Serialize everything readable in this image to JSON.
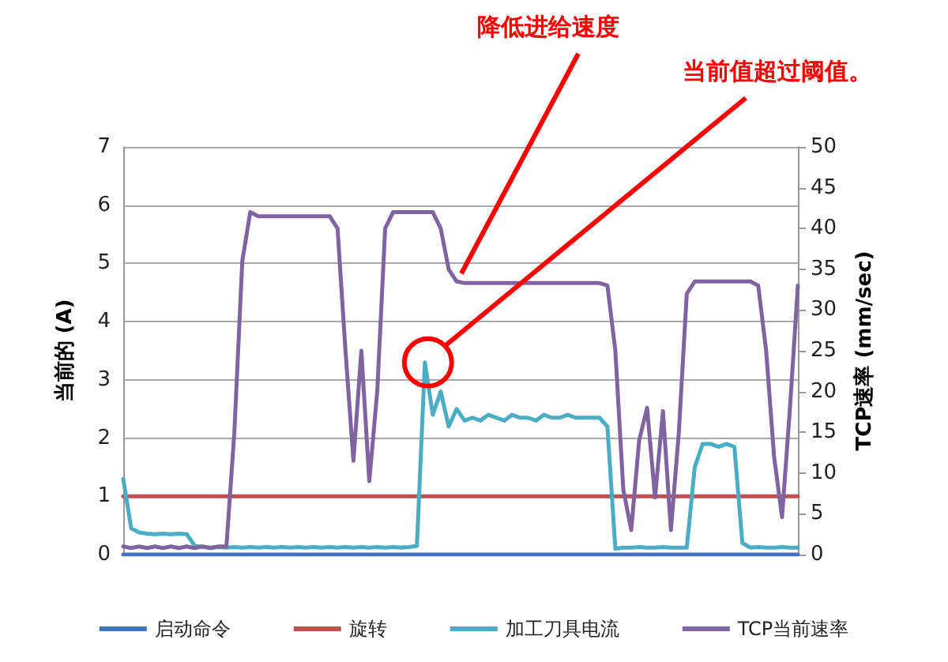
{
  "chart_data": {
    "type": "line",
    "ylabel": "当前的 (A)",
    "y2label": "TCP速率 (mm/sec)",
    "annotations": [
      "降低进给速度",
      "当前值超过阈值。"
    ],
    "categories": [
      null,
      null,
      null,
      null,
      null,
      null,
      null,
      null,
      null,
      null,
      null,
      null,
      null,
      null,
      null,
      null,
      null,
      null,
      null,
      null,
      null,
      null,
      null,
      null,
      null,
      null,
      null,
      null,
      null,
      null,
      null,
      null,
      null,
      null,
      null,
      null,
      null,
      null,
      null,
      null,
      null,
      null,
      null,
      null,
      null,
      null,
      null,
      null,
      null,
      null,
      null,
      null,
      null,
      null,
      null,
      null,
      null,
      null,
      null,
      null,
      null,
      null,
      null,
      null,
      null,
      null,
      null,
      null,
      null,
      null,
      null,
      null,
      null,
      null,
      null,
      null,
      null,
      null,
      null,
      null,
      null,
      null,
      null,
      null,
      null,
      null
    ],
    "series": [
      {
        "name": "启动命令",
        "color": "#4472c4",
        "values": [
          0,
          0,
          0,
          0,
          0,
          0,
          0,
          0,
          0,
          0,
          0,
          0,
          0,
          0,
          0,
          0,
          0,
          0,
          0,
          0,
          0,
          0,
          0,
          0,
          0,
          0,
          0,
          0,
          0,
          0,
          0,
          0,
          0,
          0,
          0,
          0,
          0,
          0,
          0,
          0,
          0,
          0,
          0,
          0,
          0,
          0,
          0,
          0,
          0,
          0,
          0,
          0,
          0,
          0,
          0,
          0,
          0,
          0,
          0,
          0,
          0,
          0,
          0,
          0,
          0,
          0,
          0,
          0,
          0,
          0,
          0,
          0,
          0,
          0,
          0,
          0,
          0,
          0,
          0,
          0,
          0,
          0,
          0,
          0,
          0,
          0
        ]
      },
      {
        "name": "旋转",
        "color": "#c0504d",
        "values": [
          1,
          1,
          1,
          1,
          1,
          1,
          1,
          1,
          1,
          1,
          1,
          1,
          1,
          1,
          1,
          1,
          1,
          1,
          1,
          1,
          1,
          1,
          1,
          1,
          1,
          1,
          1,
          1,
          1,
          1,
          1,
          1,
          1,
          1,
          1,
          1,
          1,
          1,
          1,
          1,
          1,
          1,
          1,
          1,
          1,
          1,
          1,
          1,
          1,
          1,
          1,
          1,
          1,
          1,
          1,
          1,
          1,
          1,
          1,
          1,
          1,
          1,
          1,
          1,
          1,
          1,
          1,
          1,
          1,
          1,
          1,
          1,
          1,
          1,
          1,
          1,
          1,
          1,
          1,
          1,
          1,
          1,
          1,
          1,
          1,
          1
        ]
      },
      {
        "name": "加工刀具电流",
        "color": "#4bacc6",
        "values": [
          1.3,
          0.45,
          0.38,
          0.36,
          0.35,
          0.36,
          0.35,
          0.36,
          0.35,
          0.15,
          0.13,
          0.12,
          0.13,
          0.12,
          0.13,
          0.12,
          0.13,
          0.12,
          0.13,
          0.12,
          0.13,
          0.12,
          0.13,
          0.12,
          0.13,
          0.12,
          0.13,
          0.12,
          0.13,
          0.12,
          0.13,
          0.12,
          0.13,
          0.12,
          0.13,
          0.12,
          0.13,
          0.15,
          3.3,
          2.4,
          2.8,
          2.2,
          2.5,
          2.3,
          2.35,
          2.3,
          2.4,
          2.35,
          2.3,
          2.4,
          2.35,
          2.35,
          2.3,
          2.4,
          2.35,
          2.35,
          2.4,
          2.35,
          2.35,
          2.35,
          2.35,
          2.2,
          0.1,
          0.12,
          0.12,
          0.13,
          0.12,
          0.12,
          0.13,
          0.12,
          0.12,
          0.12,
          1.5,
          1.9,
          1.9,
          1.85,
          1.9,
          1.85,
          0.2,
          0.12,
          0.13,
          0.12,
          0.12,
          0.13,
          0.12,
          0.12
        ]
      },
      {
        "name": "TCP当前速率",
        "color": "#8064a2",
        "axis": "y2",
        "values": [
          1,
          0.8,
          1,
          0.8,
          1,
          0.8,
          1,
          0.8,
          1,
          0.8,
          1,
          0.8,
          1,
          1,
          15,
          36,
          42,
          41.5,
          41.5,
          41.5,
          41.5,
          41.5,
          41.5,
          41.5,
          41.5,
          41.5,
          41.5,
          40,
          25,
          11.5,
          25,
          9,
          20,
          40,
          42,
          42,
          42,
          42,
          42,
          42,
          40,
          35,
          33.5,
          33.3,
          33.3,
          33.3,
          33.3,
          33.3,
          33.3,
          33.3,
          33.3,
          33.3,
          33.3,
          33.3,
          33.3,
          33.3,
          33.3,
          33.3,
          33.3,
          33.3,
          33.3,
          33,
          25,
          8,
          3,
          14,
          18,
          7,
          17.6,
          3,
          15,
          32,
          33.5,
          33.5,
          33.5,
          33.5,
          33.5,
          33.5,
          33.5,
          33.5,
          33,
          25,
          12,
          4.6,
          18,
          33
        ]
      }
    ],
    "ylim": [
      0,
      7
    ],
    "yticks": [
      0,
      1,
      2,
      3,
      4,
      5,
      6,
      7
    ],
    "y2lim": [
      0,
      50
    ],
    "y2ticks": [
      0,
      5,
      10,
      15,
      20,
      25,
      30,
      35,
      40,
      45,
      50
    ],
    "grid": "y",
    "legend": "bottom",
    "line_style": "solid",
    "tick_labels": "y"
  }
}
